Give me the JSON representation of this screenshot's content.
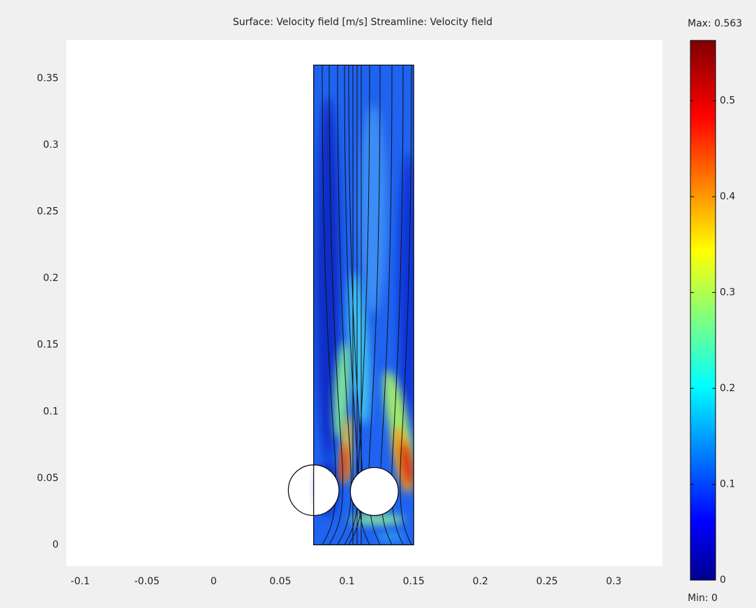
{
  "chart_data": {
    "type": "surface",
    "title": "Surface: Velocity field [m/s]   Streamline: Velocity field",
    "xlim": [
      -0.1105,
      0.3366
    ],
    "ylim": [
      -0.016,
      0.379
    ],
    "xticks": [
      -0.1,
      -0.05,
      0,
      0.05,
      0.1,
      0.15,
      0.2,
      0.25,
      0.3
    ],
    "yticks": [
      0,
      0.05,
      0.1,
      0.15,
      0.2,
      0.25,
      0.3,
      0.35
    ],
    "domain": {
      "x": [
        0.075,
        0.15
      ],
      "y": [
        0,
        0.36
      ]
    },
    "cylinders": [
      {
        "cx": 0.075,
        "cy": 0.041,
        "r": 0.019
      },
      {
        "cx": 0.1205,
        "cy": 0.04,
        "r": 0.018
      }
    ],
    "colorbar": {
      "range": [
        {
          "value": 0,
          "label": "Min: 0"
        },
        {
          "value": 0.563,
          "label": "Max: 0.563"
        }
      ],
      "ticks": [
        0,
        0.1,
        0.2,
        0.3,
        0.4,
        0.5
      ]
    }
  }
}
